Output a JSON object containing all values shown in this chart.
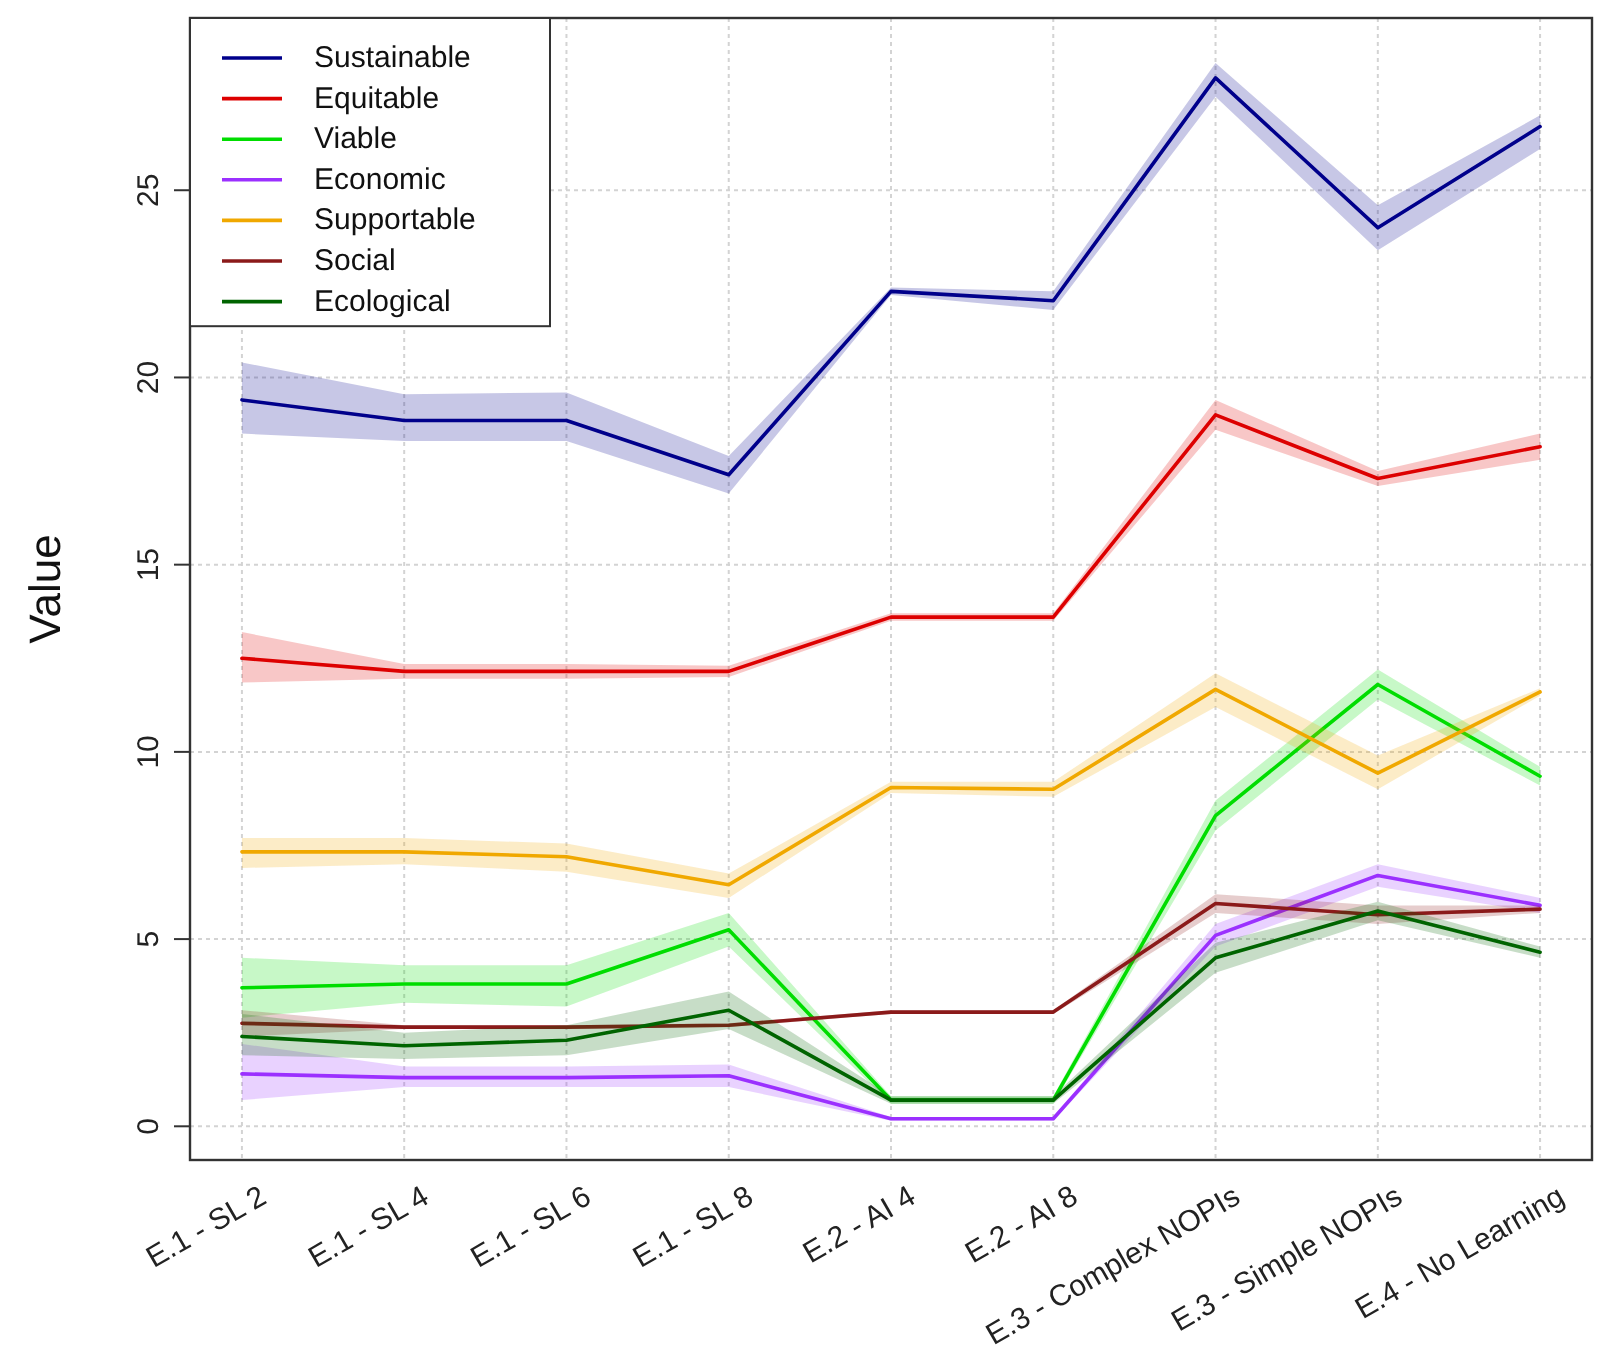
{
  "chart_data": {
    "type": "line",
    "ylabel": "Value",
    "categories": [
      "E.1 - SL 2",
      "E.1 - SL 4",
      "E.1 - SL 6",
      "E.1 - SL 8",
      "E.2 - AI 4",
      "E.2 - AI 8",
      "E.3 - Complex NOPIs",
      "E.3 - Simple NOPIs",
      "E.4 - No Learning"
    ],
    "ylim": [
      -0.9,
      29.6
    ],
    "yticks": [
      0,
      5,
      10,
      15,
      20,
      25
    ],
    "grid": true,
    "legend": "top left",
    "line_style": "solid",
    "series": [
      {
        "name": "Sustainable",
        "color": "#00008b",
        "values": [
          19.4,
          18.85,
          18.85,
          17.4,
          22.3,
          22.05,
          28.0,
          24.0,
          26.7
        ],
        "lower": [
          18.5,
          18.3,
          18.3,
          16.9,
          22.2,
          21.8,
          27.5,
          23.4,
          26.1
        ],
        "upper": [
          20.4,
          19.55,
          19.6,
          17.9,
          22.4,
          22.3,
          28.4,
          24.6,
          27.0
        ]
      },
      {
        "name": "Equitable",
        "color": "#dd0000",
        "values": [
          12.5,
          12.15,
          12.15,
          12.15,
          13.6,
          13.6,
          19.0,
          17.3,
          18.15
        ],
        "lower": [
          11.85,
          11.95,
          11.95,
          12.0,
          13.5,
          13.5,
          18.6,
          17.1,
          17.8
        ],
        "upper": [
          13.2,
          12.35,
          12.35,
          12.3,
          13.7,
          13.7,
          19.4,
          17.5,
          18.5
        ]
      },
      {
        "name": "Viable",
        "color": "#00dd00",
        "values": [
          3.7,
          3.8,
          3.8,
          5.25,
          0.7,
          0.7,
          8.3,
          11.8,
          9.35
        ],
        "lower": [
          2.9,
          3.3,
          3.2,
          4.8,
          0.6,
          0.6,
          7.9,
          11.4,
          9.1
        ],
        "upper": [
          4.5,
          4.3,
          4.3,
          5.7,
          0.8,
          0.8,
          8.7,
          12.2,
          9.6
        ]
      },
      {
        "name": "Economic",
        "color": "#9b30ff",
        "values": [
          1.4,
          1.3,
          1.3,
          1.35,
          0.2,
          0.2,
          5.1,
          6.7,
          5.9
        ],
        "lower": [
          0.7,
          1.05,
          1.05,
          1.05,
          0.15,
          0.15,
          4.8,
          6.4,
          5.7
        ],
        "upper": [
          2.2,
          1.6,
          1.6,
          1.65,
          0.25,
          0.25,
          5.4,
          7.0,
          6.1
        ]
      },
      {
        "name": "Supportable",
        "color": "#f0a800",
        "values": [
          7.33,
          7.33,
          7.2,
          6.45,
          9.05,
          9.0,
          11.67,
          9.43,
          11.6
        ],
        "lower": [
          6.9,
          7.0,
          6.8,
          6.1,
          8.9,
          8.8,
          11.2,
          9.0,
          11.5
        ],
        "upper": [
          7.7,
          7.7,
          7.55,
          6.75,
          9.2,
          9.2,
          12.1,
          9.9,
          11.7
        ]
      },
      {
        "name": "Social",
        "color": "#8b1a1a",
        "values": [
          2.75,
          2.65,
          2.65,
          2.7,
          3.05,
          3.05,
          5.95,
          5.65,
          5.8
        ],
        "lower": [
          2.4,
          2.6,
          2.6,
          2.65,
          3.0,
          3.0,
          5.7,
          5.4,
          5.7
        ],
        "upper": [
          3.1,
          2.7,
          2.7,
          2.75,
          3.1,
          3.1,
          6.2,
          5.9,
          5.9
        ]
      },
      {
        "name": "Ecological",
        "color": "#006400",
        "values": [
          2.4,
          2.15,
          2.3,
          3.1,
          0.7,
          0.7,
          4.5,
          5.75,
          4.65
        ],
        "lower": [
          1.9,
          1.8,
          1.9,
          2.6,
          0.6,
          0.6,
          4.1,
          5.5,
          4.5
        ],
        "upper": [
          3.0,
          2.5,
          2.7,
          3.6,
          0.8,
          0.8,
          4.9,
          6.0,
          4.8
        ]
      }
    ]
  }
}
